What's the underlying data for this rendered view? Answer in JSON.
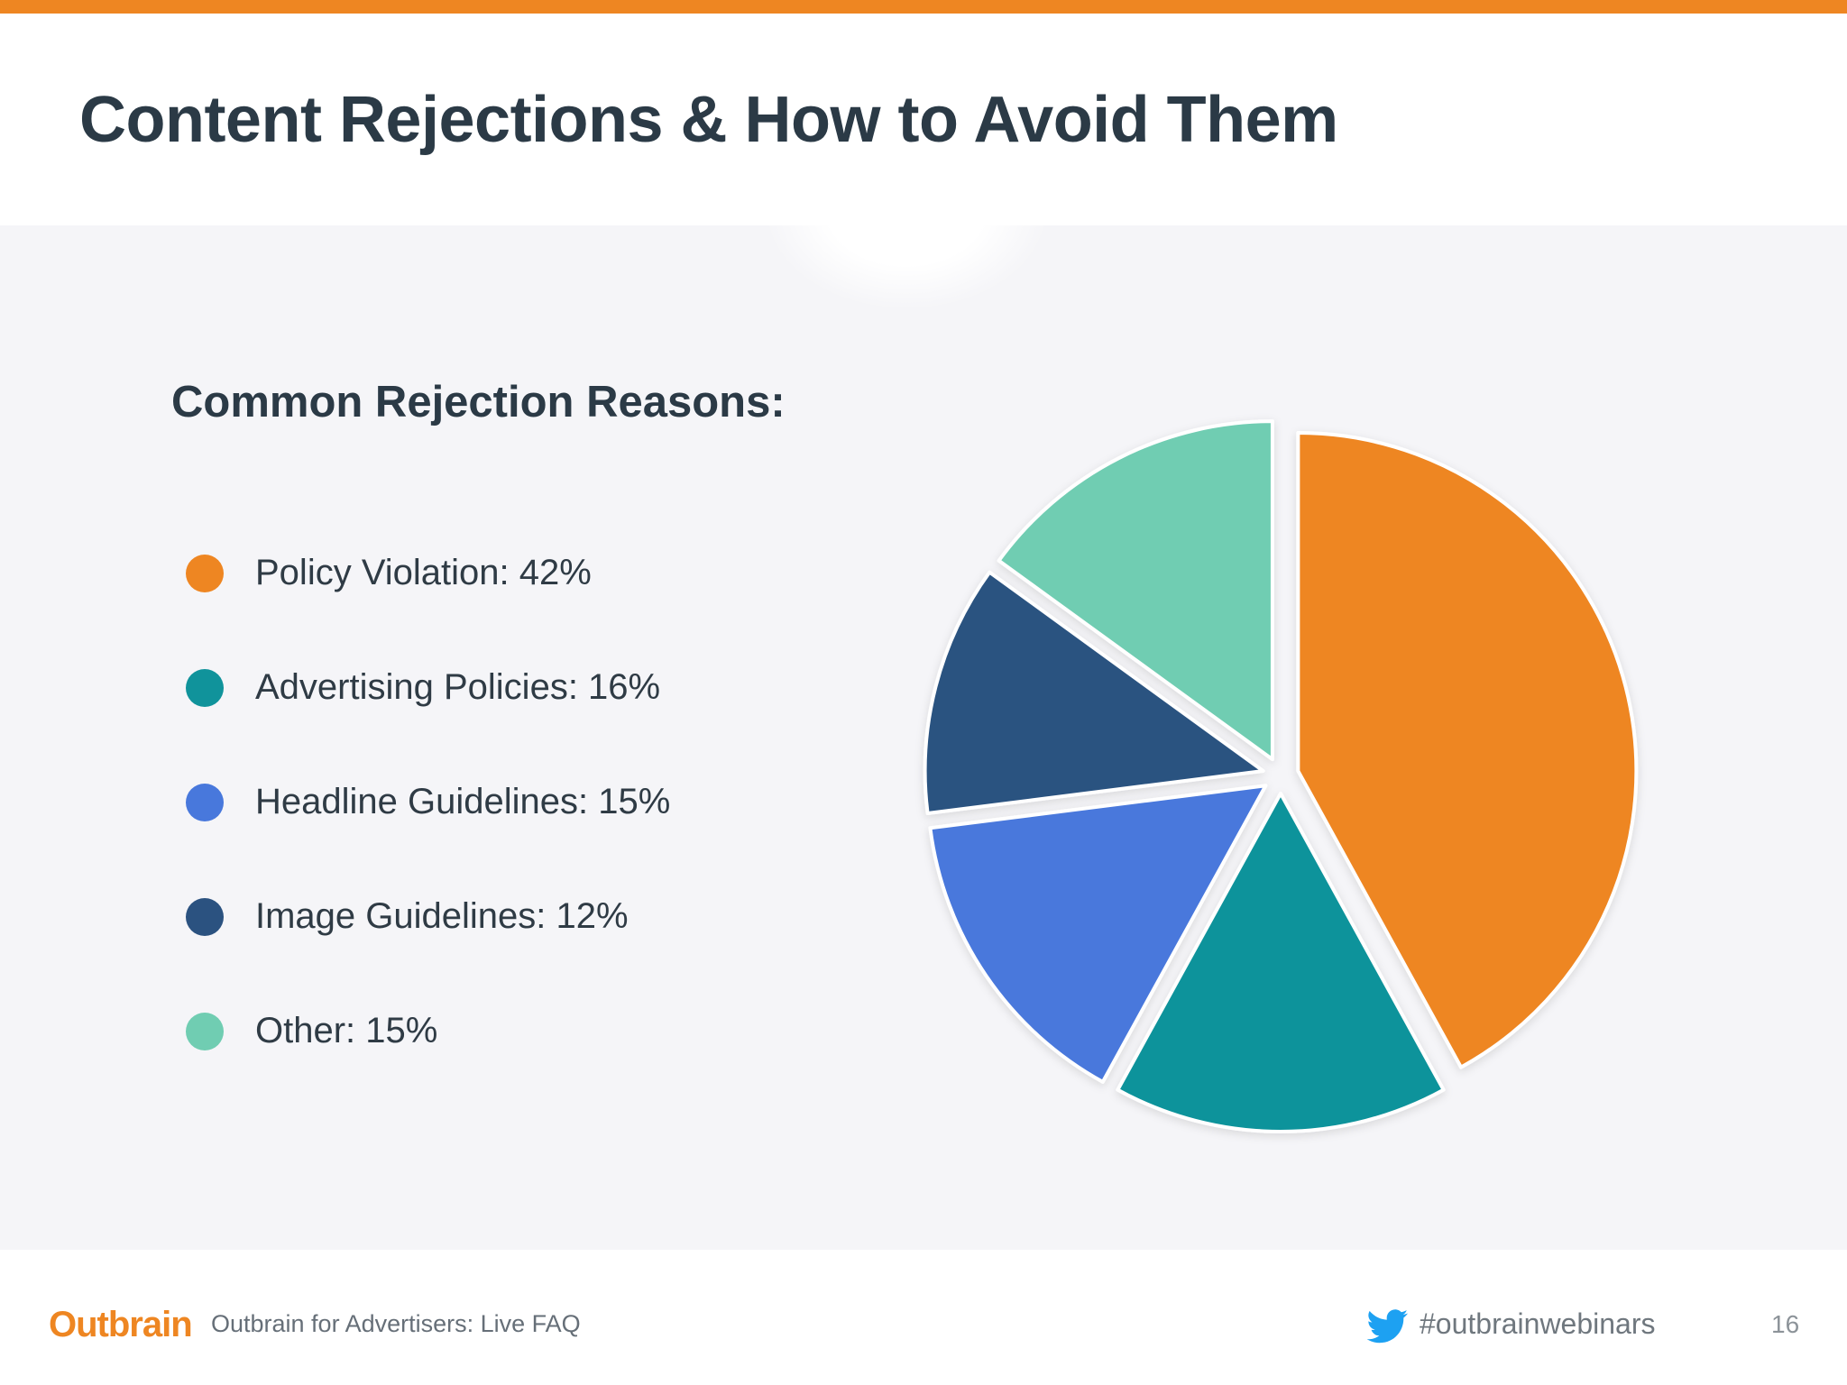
{
  "slide": {
    "title": "Content Rejections & How to Avoid Them",
    "section_heading": "Common Rejection Reasons:"
  },
  "legend": {
    "items": [
      {
        "label": "Policy Violation: 42%",
        "color": "#ee8622"
      },
      {
        "label": "Advertising Policies: 16%",
        "color": "#10939b"
      },
      {
        "label": "Headline Guidelines: 15%",
        "color": "#4878dc"
      },
      {
        "label": "Image Guidelines: 12%",
        "color": "#2b5280"
      },
      {
        "label": "Other: 15%",
        "color": "#70cdb2"
      }
    ]
  },
  "chart_data": {
    "type": "pie",
    "categories": [
      "Policy Violation",
      "Advertising Policies",
      "Headline Guidelines",
      "Image Guidelines",
      "Other"
    ],
    "values": [
      42,
      16,
      15,
      12,
      15
    ],
    "colors": [
      "#ee8622",
      "#10939b",
      "#4878dc",
      "#2b5280",
      "#70cdb2"
    ],
    "title": "",
    "legend_placement": "left",
    "exploded": true,
    "start_angle": "12 o'clock",
    "direction": "clockwise"
  },
  "footer": {
    "logo_text": "Outbrain",
    "presentation_title": "Outbrain for Advertisers: Live FAQ",
    "hashtag": "#outbrainwebinars",
    "page_number": "16",
    "twitter_icon": "twitter-bird-icon"
  }
}
